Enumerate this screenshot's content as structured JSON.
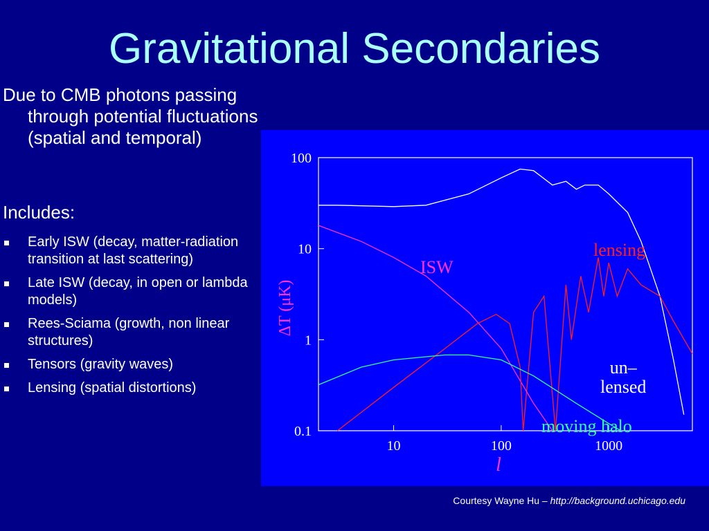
{
  "title": "Gravitational Secondaries",
  "body": {
    "intro": "Due to CMB photons passing through potential fluctuations (spatial and temporal)",
    "includes": "Includes:",
    "bullets": [
      "Early ISW (decay, matter-radiation transition at last scattering)",
      "Late ISW (decay, in open or lambda models)",
      "Rees-Sciama (growth, non linear structures)",
      "Tensors (gravity waves)",
      "Lensing (spatial distortions)"
    ]
  },
  "chart_data": {
    "type": "line",
    "xlabel": "l",
    "ylabel": "ΔT (μK)",
    "xscale": "log",
    "yscale": "log",
    "xlim": [
      2,
      6000
    ],
    "ylim": [
      0.1,
      100
    ],
    "xticks": [
      10,
      100,
      1000
    ],
    "yticks": [
      0.1,
      1,
      10,
      100
    ],
    "series": [
      {
        "name": "un–\nlensed",
        "color": "#ffffff",
        "x": [
          2,
          3,
          10,
          20,
          50,
          100,
          150,
          200,
          300,
          400,
          500,
          600,
          800,
          1000,
          1500,
          2000,
          3000,
          4000,
          5000
        ],
        "values": [
          30,
          30,
          29,
          30,
          40,
          60,
          75,
          72,
          50,
          55,
          45,
          50,
          50,
          40,
          25,
          12,
          3,
          0.6,
          0.15
        ]
      },
      {
        "name": "lensing",
        "color": "#ff2020",
        "x": [
          160,
          200,
          250,
          320,
          400,
          450,
          550,
          650,
          800,
          900,
          1000,
          1200,
          1500,
          2000,
          3000,
          4000,
          6000
        ],
        "values": [
          0.1,
          2,
          3,
          0.1,
          4,
          1,
          5,
          2,
          8,
          3,
          7,
          3,
          6,
          4,
          3,
          1.6,
          0.7
        ]
      },
      {
        "name": "ISW",
        "color": "#ff33cc",
        "x": [
          2,
          5,
          10,
          20,
          50,
          100,
          200,
          300
        ],
        "values": [
          18,
          12,
          8,
          5,
          2,
          0.8,
          0.2,
          0.1
        ]
      },
      {
        "name": null,
        "color": "#ff2020",
        "x": [
          3,
          10,
          30,
          60,
          90,
          120,
          150,
          160
        ],
        "values": [
          0.1,
          0.3,
          0.8,
          1.5,
          1.9,
          1.5,
          0.5,
          0.1
        ]
      },
      {
        "name": "moving halo",
        "color": "#33ff99",
        "x": [
          2,
          5,
          10,
          30,
          50,
          100,
          200,
          500,
          1000,
          1300
        ],
        "values": [
          0.32,
          0.5,
          0.6,
          0.68,
          0.68,
          0.6,
          0.4,
          0.2,
          0.12,
          0.1
        ]
      }
    ]
  },
  "credit": {
    "prefix": "Courtesy Wayne Hu – ",
    "url": "http://background.uchicago.edu"
  }
}
